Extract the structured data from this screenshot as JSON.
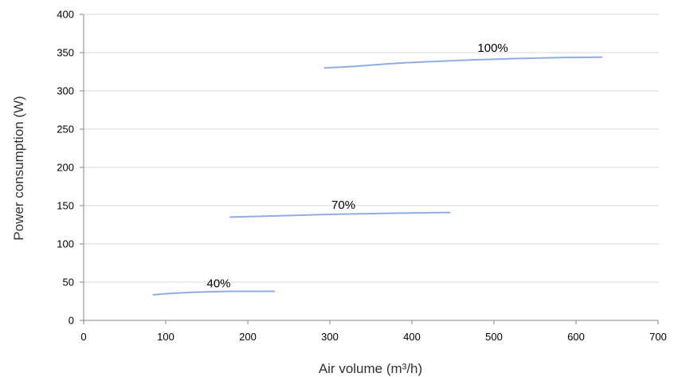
{
  "chart_data": {
    "type": "line",
    "xlabel": "Air volume (m³/h)",
    "ylabel": "Power consumption (W)",
    "xlim": [
      0,
      700
    ],
    "ylim": [
      0,
      400
    ],
    "xticks": [
      0,
      100,
      200,
      300,
      400,
      500,
      600,
      700
    ],
    "yticks": [
      0,
      50,
      100,
      150,
      200,
      250,
      300,
      350,
      400
    ],
    "grid": true,
    "legend": "none",
    "line_color": "#8eaee3",
    "series": [
      {
        "name": "100%",
        "label_at": [
          480,
          351
        ],
        "points": [
          [
            293,
            330
          ],
          [
            330,
            332
          ],
          [
            380,
            336
          ],
          [
            450,
            339.5
          ],
          [
            520,
            342
          ],
          [
            580,
            343.5
          ],
          [
            632,
            344
          ]
        ]
      },
      {
        "name": "70%",
        "label_at": [
          302,
          146
        ],
        "points": [
          [
            178,
            135
          ],
          [
            230,
            136.5
          ],
          [
            300,
            138.5
          ],
          [
            370,
            140
          ],
          [
            420,
            140.7
          ],
          [
            447,
            141
          ]
        ]
      },
      {
        "name": "40%",
        "label_at": [
          150,
          43
        ],
        "points": [
          [
            84,
            33.5
          ],
          [
            110,
            35.5
          ],
          [
            140,
            37
          ],
          [
            180,
            38
          ],
          [
            210,
            38
          ],
          [
            233,
            38
          ]
        ]
      }
    ]
  }
}
